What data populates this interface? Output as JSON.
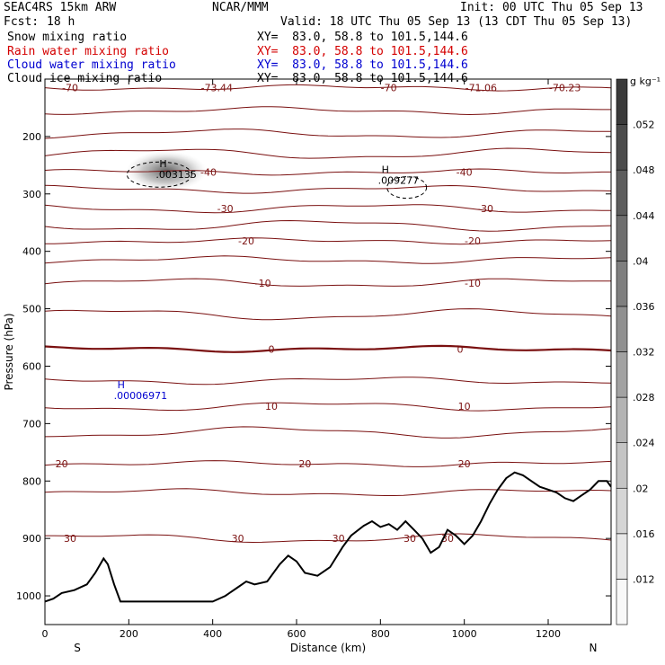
{
  "header": {
    "model": "SEAC4RS 15km ARW",
    "org": "NCAR/MMM",
    "init": "Init: 00 UTC Thu 05 Sep 13",
    "fcst_label": "Fcst:",
    "fcst_value": "18 h",
    "valid": "Valid: 18 UTC Thu 05 Sep 13 (13 CDT Thu 05 Sep 13)"
  },
  "fields": [
    {
      "name": "Snow mixing ratio",
      "xy": "XY=  83.0, 58.8 to 101.5,144.6",
      "color": "#000000"
    },
    {
      "name": "Rain water mixing ratio",
      "xy": "XY=  83.0, 58.8 to 101.5,144.6",
      "color": "#d40000"
    },
    {
      "name": "Cloud water mixing ratio",
      "xy": "XY=  83.0, 58.8 to 101.5,144.6",
      "color": "#0000d0"
    },
    {
      "name": "Cloud ice mixing ratio",
      "xy": "XY=  83.0, 58.8 to 101.5,144.6",
      "color": "#000000"
    }
  ],
  "chart_data": {
    "type": "cross-section contour",
    "xlabel": "Distance (km)",
    "ylabel": "Pressure (hPa)",
    "x_ticks": [
      0,
      200,
      400,
      600,
      800,
      1000,
      1200
    ],
    "y_ticks": [
      200,
      300,
      400,
      500,
      600,
      700,
      800,
      900,
      1000
    ],
    "xlim": [
      0,
      1350
    ],
    "ylim": [
      100,
      1050
    ],
    "left_end_label": "S",
    "right_end_label": "N",
    "temperature_contours": [
      {
        "value": -70,
        "pressure": 115,
        "labels": [
          {
            "text": "-70",
            "x": 60
          },
          {
            "text": "-73.44",
            "x": 410
          },
          {
            "text": "-70",
            "x": 820
          },
          {
            "text": "-71.06",
            "x": 1040
          },
          {
            "text": "-70.23",
            "x": 1240
          }
        ]
      },
      {
        "value": -60,
        "pressure": 155,
        "labels": []
      },
      {
        "value": -55,
        "pressure": 195,
        "labels": []
      },
      {
        "value": -50,
        "pressure": 230,
        "labels": []
      },
      {
        "value": -40,
        "pressure": 262,
        "labels": [
          {
            "text": "-40",
            "x": 390
          },
          {
            "text": "-40",
            "x": 1000
          }
        ]
      },
      {
        "value": -35,
        "pressure": 292,
        "labels": []
      },
      {
        "value": -30,
        "pressure": 325,
        "labels": [
          {
            "text": "-30",
            "x": 430
          },
          {
            "text": "-30",
            "x": 1050
          }
        ]
      },
      {
        "value": -25,
        "pressure": 355,
        "labels": []
      },
      {
        "value": -20,
        "pressure": 382,
        "labels": [
          {
            "text": "-20",
            "x": 480
          },
          {
            "text": "-20",
            "x": 1020
          }
        ]
      },
      {
        "value": -15,
        "pressure": 415,
        "labels": []
      },
      {
        "value": -10,
        "pressure": 455,
        "labels": [
          {
            "text": "-10",
            "x": 520
          },
          {
            "text": "-10",
            "x": 1020
          }
        ]
      },
      {
        "value": -5,
        "pressure": 510,
        "labels": []
      },
      {
        "value": 0,
        "pressure": 570,
        "labels": [
          {
            "text": "0",
            "x": 540
          },
          {
            "text": "0",
            "x": 990
          }
        ]
      },
      {
        "value": 5,
        "pressure": 625,
        "labels": []
      },
      {
        "value": 10,
        "pressure": 670,
        "labels": [
          {
            "text": "10",
            "x": 540
          },
          {
            "text": "10",
            "x": 1000
          }
        ]
      },
      {
        "value": 15,
        "pressure": 715,
        "labels": []
      },
      {
        "value": 20,
        "pressure": 770,
        "labels": [
          {
            "text": "20",
            "x": 40
          },
          {
            "text": "20",
            "x": 620
          },
          {
            "text": "20",
            "x": 1000
          }
        ]
      },
      {
        "value": 25,
        "pressure": 820,
        "labels": []
      },
      {
        "value": 30,
        "pressure": 900,
        "labels": [
          {
            "text": "30",
            "x": 60
          },
          {
            "text": "30",
            "x": 460
          },
          {
            "text": "30",
            "x": 700
          },
          {
            "text": "30",
            "x": 870
          },
          {
            "text": "30",
            "x": 960
          }
        ]
      }
    ],
    "maxima": [
      {
        "label": "H",
        "value": ".003135",
        "x": 290,
        "pressure": 260,
        "color": "#000000"
      },
      {
        "label": "H",
        "value": ".009277",
        "x": 820,
        "pressure": 270,
        "color": "#000000"
      },
      {
        "label": "H",
        "value": ".00006971",
        "x": 190,
        "pressure": 645,
        "color": "#0000d0"
      }
    ],
    "terrain": {
      "x": [
        0,
        20,
        40,
        70,
        100,
        120,
        140,
        150,
        165,
        180,
        190,
        200,
        400,
        430,
        460,
        480,
        500,
        530,
        560,
        580,
        600,
        620,
        650,
        680,
        710,
        730,
        760,
        780,
        800,
        820,
        840,
        860,
        880,
        900,
        920,
        940,
        960,
        980,
        1000,
        1020,
        1040,
        1060,
        1080,
        1100,
        1120,
        1140,
        1160,
        1180,
        1200,
        1220,
        1240,
        1260,
        1280,
        1300,
        1320,
        1340,
        1350
      ],
      "pressure": [
        1010,
        1005,
        995,
        990,
        980,
        960,
        935,
        945,
        980,
        1010,
        1010,
        1010,
        1010,
        1000,
        985,
        975,
        980,
        975,
        945,
        930,
        940,
        960,
        965,
        950,
        915,
        895,
        878,
        870,
        880,
        875,
        885,
        870,
        885,
        900,
        925,
        915,
        885,
        895,
        910,
        895,
        870,
        840,
        815,
        795,
        785,
        790,
        800,
        810,
        815,
        820,
        830,
        835,
        825,
        815,
        800,
        800,
        810
      ]
    },
    "colorbar": {
      "unit": "g kg⁻¹",
      "ticks": [
        ".012",
        ".016",
        ".02",
        ".024",
        ".028",
        ".032",
        ".036",
        ".04",
        ".044",
        ".048",
        ".052"
      ]
    }
  }
}
